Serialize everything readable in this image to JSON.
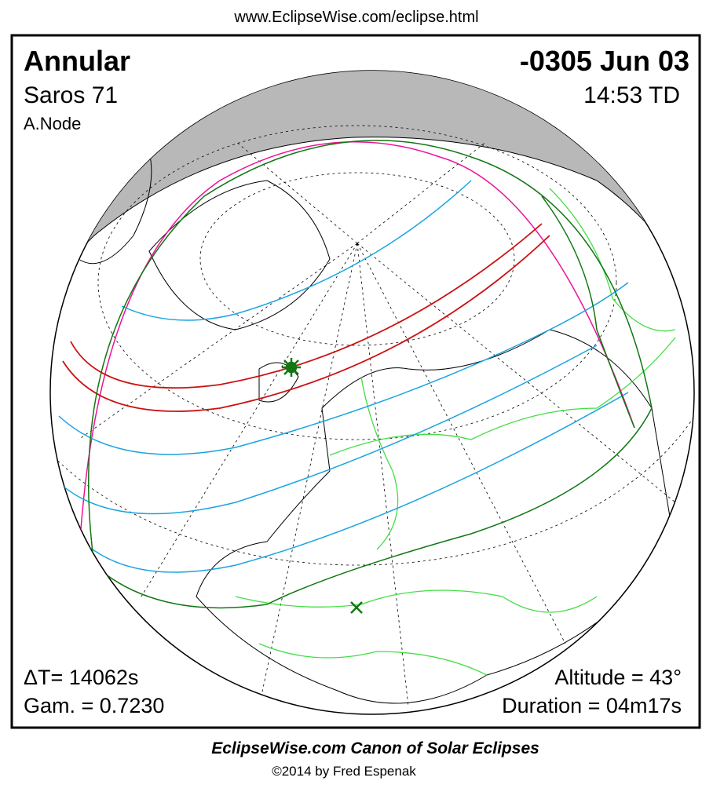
{
  "header": {
    "url": "www.EclipseWise.com/eclipse.html"
  },
  "panel": {
    "eclipse_type": "Annular",
    "date": "-0305 Jun 03",
    "saros": "Saros  71",
    "time": "14:53 TD",
    "node": "A.Node",
    "delta_t": "ΔT=  14062s",
    "gamma": "Gam. = 0.7230",
    "altitude": "Altitude = 43°",
    "duration": "Duration = 04m17s"
  },
  "footer": {
    "title": "EclipseWise.com Canon of Solar Eclipses",
    "copyright": "©2014 by Fred Espenak"
  }
}
